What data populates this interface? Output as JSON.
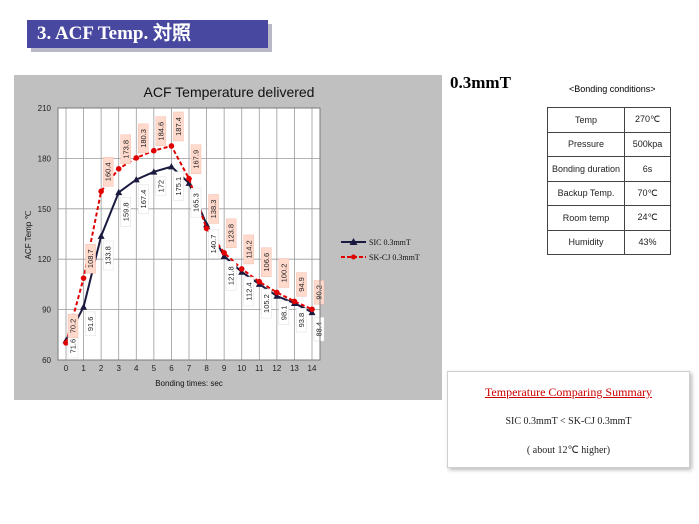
{
  "slide": {
    "title": "3.  ACF Temp. 対照",
    "thickness": "0.3mmT"
  },
  "chart_data": {
    "type": "line",
    "title": "ACF Temperature delivered",
    "xlabel": "Bonding times: sec",
    "ylabel": "ACF Temp  ℃",
    "x": [
      0,
      1,
      2,
      3,
      4,
      5,
      6,
      7,
      8,
      9,
      10,
      11,
      12,
      13,
      14
    ],
    "xlim": [
      0,
      14
    ],
    "ylim": [
      60,
      210
    ],
    "yticks": [
      60,
      90,
      120,
      150,
      180,
      210
    ],
    "grid": true,
    "legend_position": "right",
    "series": [
      {
        "name": "SIC  0.3mmT",
        "color": "#1a1a40",
        "style": "solid-triangle",
        "values": [
          71.6,
          91.6,
          133.8,
          159.8,
          167.4,
          172,
          175.1,
          165.3,
          140.7,
          121.8,
          112.4,
          105.2,
          98.1,
          93.8,
          88.4
        ],
        "labels": [
          "71.6",
          "91.6",
          "133.8",
          "159.8",
          "167.4",
          "172",
          "175.1",
          "165.3",
          "140.7",
          "121.8",
          "112.4",
          "105.2",
          "98.1",
          "93.8",
          "88.4"
        ]
      },
      {
        "name": "SK-CJ  0.3mmT",
        "color": "#e00000",
        "style": "dashed-circle",
        "values": [
          70.2,
          108.7,
          160.4,
          173.8,
          180.3,
          184.6,
          187.4,
          167.9,
          138.3,
          123.8,
          114.2,
          106.6,
          100.2,
          94.9,
          90.2
        ],
        "labels": [
          "70.2",
          "108.7",
          "160.4",
          "173.8",
          "180.3",
          "184.6",
          "187.4",
          "167.9",
          "138.3",
          "123.8",
          "114.2",
          "106.6",
          "100.2",
          "94.9",
          "90.2"
        ]
      }
    ]
  },
  "conditions": {
    "title": "<Bonding conditions>",
    "rows": [
      {
        "key": "Temp",
        "value": "270℃"
      },
      {
        "key": "Pressure",
        "value": "500kpa"
      },
      {
        "key": "Bonding duration",
        "value": "6s"
      },
      {
        "key": "Backup Temp.",
        "value": "70℃"
      },
      {
        "key": "Room temp",
        "value": "24℃"
      },
      {
        "key": "Humidity",
        "value": "43%"
      }
    ]
  },
  "summary": {
    "title": "Temperature  Comparing Summary",
    "compare": "SIC  0.3mmT  <  SK-CJ 0.3mmT",
    "note": "( about 12℃ higher)"
  }
}
